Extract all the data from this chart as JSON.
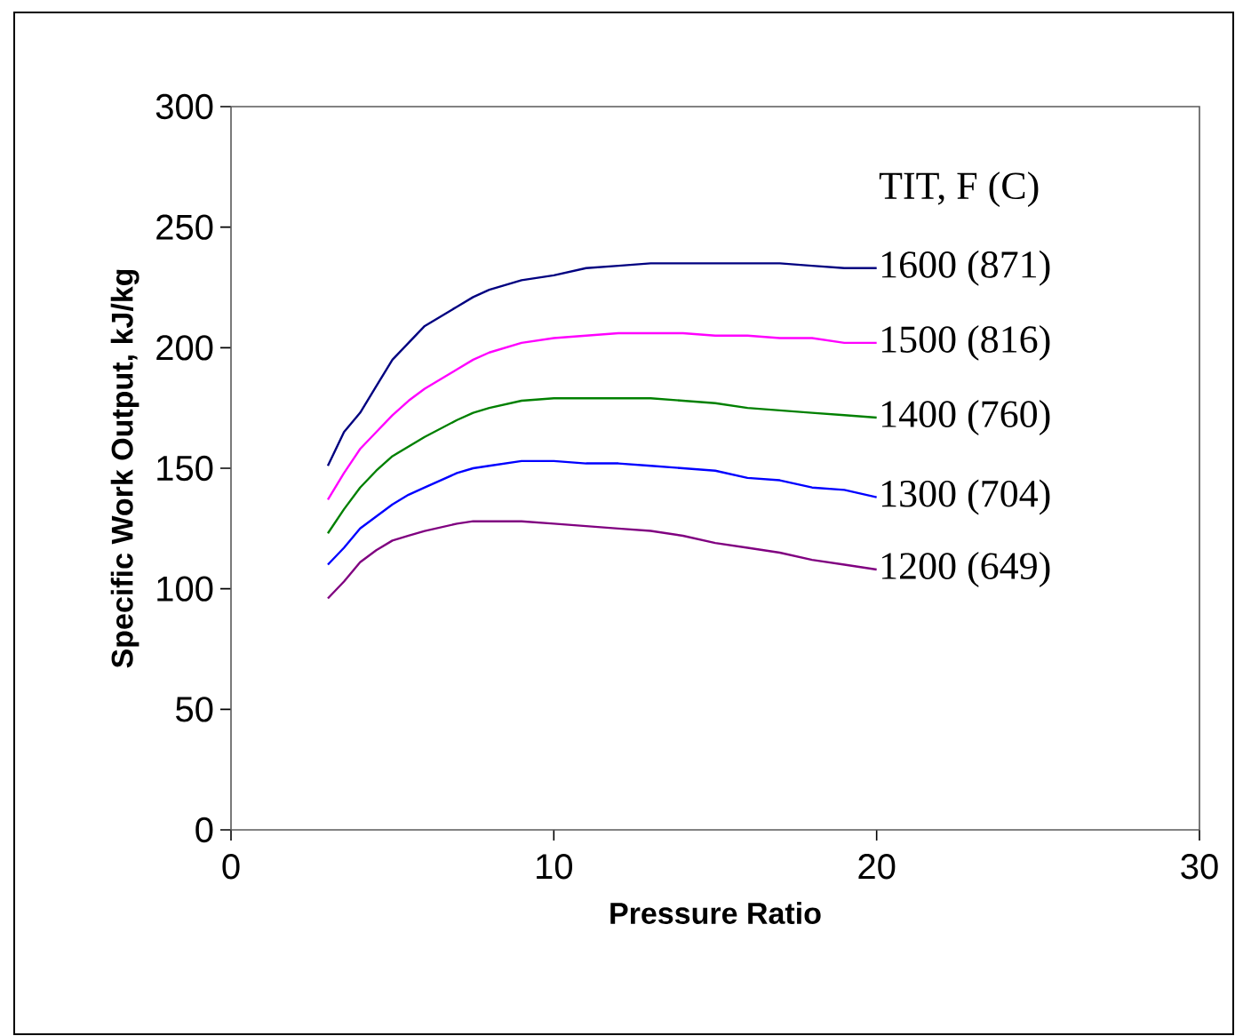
{
  "chart_data": {
    "type": "line",
    "xlabel": "Pressure Ratio",
    "ylabel": "Specific Work Output, kJ/kg",
    "legend_title": "TIT, F (C)",
    "xlim": [
      0,
      30
    ],
    "xticks": [
      0,
      10,
      20,
      30
    ],
    "ylim": [
      0,
      300
    ],
    "yticks": [
      0,
      50,
      100,
      150,
      200,
      250,
      300
    ],
    "grid": false,
    "legend": false,
    "marker": "none",
    "line_style": "solid",
    "x": [
      3,
      3.5,
      4,
      4.5,
      5,
      5.5,
      6,
      7,
      7.5,
      8,
      9,
      10,
      11,
      12,
      13,
      14,
      15,
      16,
      17,
      18,
      19,
      20
    ],
    "series": [
      {
        "name": "1600 (871)",
        "color": "#000080",
        "values": [
          151,
          165,
          173,
          184,
          195,
          202,
          209,
          217,
          221,
          224,
          228,
          230,
          233,
          234,
          235,
          235,
          235,
          235,
          235,
          234,
          233,
          233
        ]
      },
      {
        "name": "1500 (816)",
        "color": "#ff00ff",
        "values": [
          137,
          148,
          158,
          165,
          172,
          178,
          183,
          191,
          195,
          198,
          202,
          204,
          205,
          206,
          206,
          206,
          205,
          205,
          204,
          204,
          202,
          202
        ]
      },
      {
        "name": "1400 (760)",
        "color": "#008000",
        "values": [
          123,
          133,
          142,
          149,
          155,
          159,
          163,
          170,
          173,
          175,
          178,
          179,
          179,
          179,
          179,
          178,
          177,
          175,
          174,
          173,
          172,
          171
        ]
      },
      {
        "name": "1300 (704)",
        "color": "#0000ff",
        "values": [
          110,
          117,
          125,
          130,
          135,
          139,
          142,
          148,
          150,
          151,
          153,
          153,
          152,
          152,
          151,
          150,
          149,
          146,
          145,
          142,
          141,
          138
        ]
      },
      {
        "name": "1200 (649)",
        "color": "#800080",
        "values": [
          96,
          103,
          111,
          116,
          120,
          122,
          124,
          127,
          128,
          128,
          128,
          127,
          126,
          125,
          124,
          122,
          119,
          117,
          115,
          112,
          110,
          108
        ]
      }
    ]
  }
}
